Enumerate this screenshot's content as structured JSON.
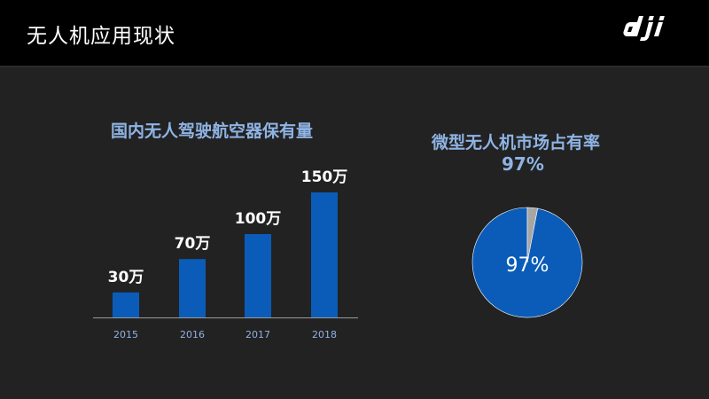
{
  "header": {
    "title": "无人机应用现状",
    "logo_text": "dji"
  },
  "colors": {
    "bar": "#0b5cb8",
    "pie_main": "#0b5cb8",
    "pie_rest": "#a6a6a6",
    "title": "#8fb3e3",
    "axis_label": "#8fb3e3"
  },
  "chart_data": [
    {
      "type": "bar",
      "title": "国内无人驾驶航空器保有量",
      "categories": [
        "2015",
        "2016",
        "2017",
        "2018"
      ],
      "values": [
        30,
        70,
        100,
        150
      ],
      "data_labels": [
        "30万",
        "70万",
        "100万",
        "150万"
      ],
      "unit": "万",
      "ylim": [
        0,
        150
      ],
      "grid": false
    },
    {
      "type": "pie",
      "title": "微型无人机市场占有率",
      "headline": "97%",
      "slices": [
        {
          "label": "97%",
          "value": 97
        },
        {
          "label": "",
          "value": 3
        }
      ]
    }
  ]
}
